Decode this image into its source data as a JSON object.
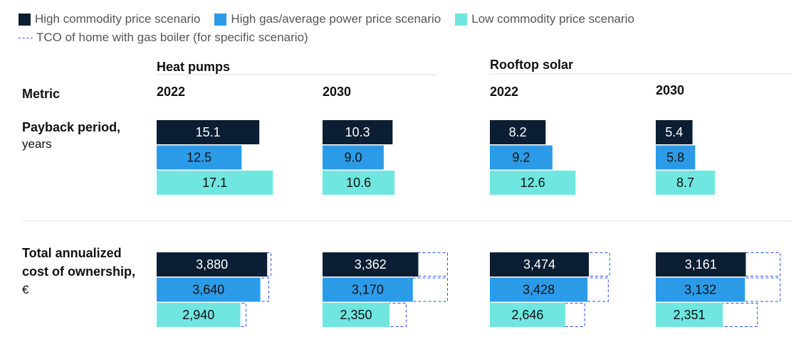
{
  "legend": {
    "high": "High commodity price scenario",
    "gas": "High gas/average power price scenario",
    "low": "Low commodity price scenario",
    "tco": "TCO of home with gas boiler (for specific scenario)"
  },
  "colors": {
    "high": "#0b1e33",
    "gas": "#2b9be8",
    "low": "#6fe6df",
    "tco_outline": "#2251ff",
    "rule": "#dddddd"
  },
  "header": {
    "metric_label": "Metric",
    "groups": [
      {
        "label": "Heat pumps",
        "years": [
          "2022",
          "2030"
        ]
      },
      {
        "label": "Rooftop solar",
        "years": [
          "2022",
          "2030"
        ]
      }
    ]
  },
  "chart_data": {
    "type": "bar",
    "orientation": "horizontal",
    "series_order": [
      "high",
      "gas",
      "low"
    ],
    "columns": [
      "Heat pumps 2022",
      "Heat pumps 2030",
      "Rooftop solar 2022",
      "Rooftop solar 2030"
    ],
    "metrics": [
      {
        "key": "payback",
        "label": [
          "Payback period,"
        ],
        "sublabel": "years",
        "values": [
          [
            15.1,
            12.5,
            17.1
          ],
          [
            10.3,
            9.0,
            10.6
          ],
          [
            8.2,
            9.2,
            12.6
          ],
          [
            5.4,
            5.8,
            8.7
          ]
        ],
        "display": [
          [
            "15.1",
            "12.5",
            "17.1"
          ],
          [
            "10.3",
            "9.0",
            "10.6"
          ],
          [
            "8.2",
            "9.2",
            "12.6"
          ],
          [
            "5.4",
            "5.8",
            "8.7"
          ]
        ]
      },
      {
        "key": "tco",
        "label": [
          "Total annualized",
          "cost of ownership,"
        ],
        "sublabel": "€",
        "values": [
          [
            3880,
            3640,
            2940
          ],
          [
            3362,
            3170,
            2350
          ],
          [
            3474,
            3428,
            2646
          ],
          [
            3161,
            3132,
            2351
          ]
        ],
        "display": [
          [
            "3,880",
            "3,640",
            "2,940"
          ],
          [
            "3,362",
            "3,170",
            "2,350"
          ],
          [
            "3,474",
            "3,428",
            "2,646"
          ],
          [
            "3,161",
            "3,132",
            "2,351"
          ]
        ],
        "tco_gas_boiler": [
          [
            4030,
            3950,
            3150
          ],
          [
            4400,
            4400,
            2950
          ],
          [
            4220,
            4170,
            3340
          ],
          [
            4380,
            4380,
            3580
          ]
        ]
      }
    ]
  }
}
